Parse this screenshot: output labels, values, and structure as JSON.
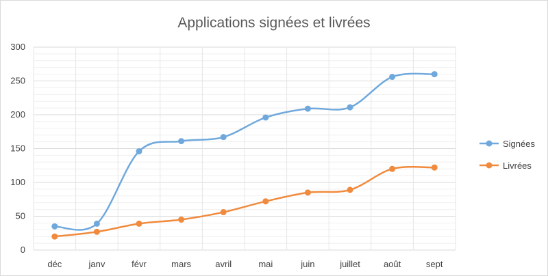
{
  "chart_data": {
    "type": "line",
    "title": "Applications signées et livrées",
    "xlabel": "",
    "ylabel": "",
    "categories": [
      "déc",
      "janv",
      "févr",
      "mars",
      "avril",
      "mai",
      "juin",
      "juillet",
      "août",
      "sept"
    ],
    "ylim": [
      0,
      300
    ],
    "yticks": [
      0,
      50,
      100,
      150,
      200,
      250,
      300
    ],
    "grid": true,
    "legend_position": "right",
    "series": [
      {
        "name": "Signées",
        "color": "#6fa8dc",
        "values": [
          35,
          39,
          146,
          161,
          167,
          196,
          209,
          211,
          256,
          260
        ]
      },
      {
        "name": "Livrées",
        "color": "#f08a3c",
        "values": [
          20,
          27,
          39,
          45,
          56,
          72,
          85,
          89,
          120,
          122
        ]
      }
    ]
  }
}
